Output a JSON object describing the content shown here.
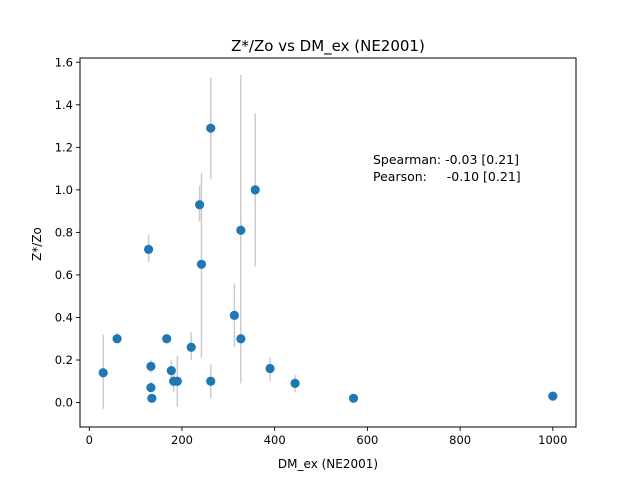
{
  "chart_data": {
    "type": "scatter",
    "title": "Z*/Zo vs DM_ex (NE2001)",
    "xlabel": "DM_ex (NE2001)",
    "ylabel": "Z*/Zo",
    "xlim": [
      -20,
      1050
    ],
    "ylim": [
      -0.115,
      1.62
    ],
    "xticks": [
      0,
      200,
      400,
      600,
      800,
      1000
    ],
    "xtick_labels": [
      "0",
      "200",
      "400",
      "600",
      "800",
      "1000"
    ],
    "yticks": [
      0.0,
      0.2,
      0.4,
      0.6,
      0.8,
      1.0,
      1.2,
      1.4,
      1.6
    ],
    "ytick_labels": [
      "0.0",
      "0.2",
      "0.4",
      "0.6",
      "0.8",
      "1.0",
      "1.2",
      "1.4",
      "1.6"
    ],
    "grid": false,
    "legend": false,
    "marker_color": "#1f77b4",
    "errorbar_color": "#cccccc",
    "annotations": [
      "Spearman: -0.03 [0.21]",
      "Pearson:     -0.10 [0.21]"
    ],
    "points": [
      {
        "x": 30,
        "y": 0.14,
        "ylo": -0.03,
        "yhi": 0.32
      },
      {
        "x": 60,
        "y": 0.3,
        "ylo": 0.28,
        "yhi": 0.33
      },
      {
        "x": 128,
        "y": 0.72,
        "ylo": 0.66,
        "yhi": 0.79
      },
      {
        "x": 133,
        "y": 0.17,
        "ylo": 0.14,
        "yhi": 0.2
      },
      {
        "x": 133,
        "y": 0.07,
        "ylo": 0.05,
        "yhi": 0.1
      },
      {
        "x": 135,
        "y": 0.02,
        "ylo": 0.0,
        "yhi": 0.04
      },
      {
        "x": 167,
        "y": 0.3,
        "ylo": 0.28,
        "yhi": 0.32
      },
      {
        "x": 177,
        "y": 0.15,
        "ylo": 0.1,
        "yhi": 0.2
      },
      {
        "x": 182,
        "y": 0.1,
        "ylo": 0.05,
        "yhi": 0.15
      },
      {
        "x": 190,
        "y": 0.1,
        "ylo": -0.02,
        "yhi": 0.22
      },
      {
        "x": 220,
        "y": 0.26,
        "ylo": 0.2,
        "yhi": 0.33
      },
      {
        "x": 238,
        "y": 0.93,
        "ylo": 0.85,
        "yhi": 1.02
      },
      {
        "x": 242,
        "y": 0.65,
        "ylo": 0.21,
        "yhi": 1.08
      },
      {
        "x": 262,
        "y": 1.29,
        "ylo": 1.05,
        "yhi": 1.53
      },
      {
        "x": 262,
        "y": 0.1,
        "ylo": 0.02,
        "yhi": 0.18
      },
      {
        "x": 313,
        "y": 0.41,
        "ylo": 0.26,
        "yhi": 0.56
      },
      {
        "x": 327,
        "y": 0.81,
        "ylo": 0.76,
        "yhi": 0.86
      },
      {
        "x": 327,
        "y": 0.3,
        "ylo": 0.09,
        "yhi": 1.54
      },
      {
        "x": 358,
        "y": 1.0,
        "ylo": 0.64,
        "yhi": 1.36
      },
      {
        "x": 390,
        "y": 0.16,
        "ylo": 0.1,
        "yhi": 0.21
      },
      {
        "x": 444,
        "y": 0.09,
        "ylo": 0.05,
        "yhi": 0.13
      },
      {
        "x": 570,
        "y": 0.02,
        "ylo": 0.01,
        "yhi": 0.03
      },
      {
        "x": 1000,
        "y": 0.03,
        "ylo": 0.02,
        "yhi": 0.04
      }
    ]
  }
}
